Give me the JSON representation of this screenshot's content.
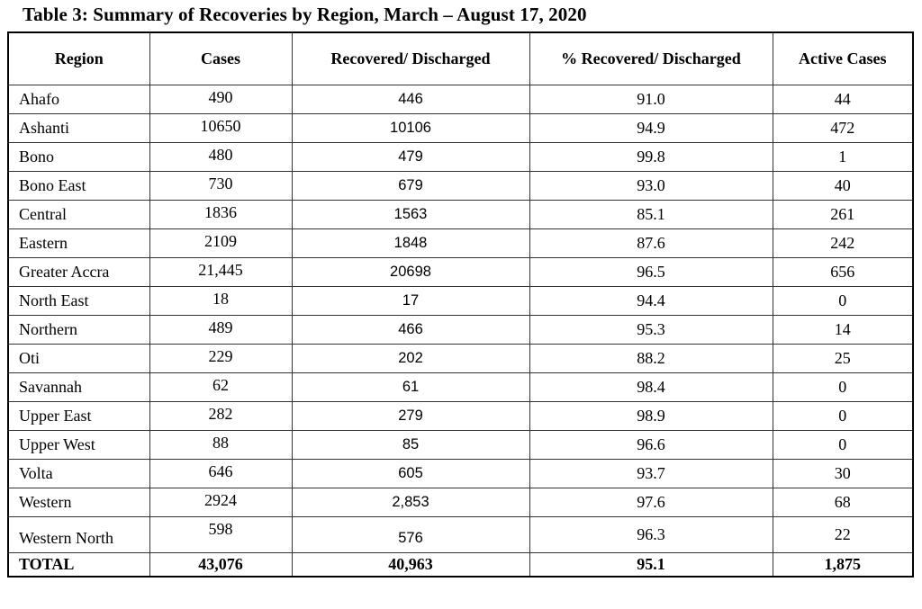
{
  "title": "Table 3: Summary of Recoveries by Region, March – August 17, 2020",
  "colors": {
    "background": "#ffffff",
    "text": "#000000",
    "border": "#000000"
  },
  "table": {
    "columns": [
      "Region",
      "Cases",
      "Recovered/ Discharged",
      "% Recovered/ Discharged",
      "Active Cases"
    ],
    "rows": [
      {
        "region": "Ahafo",
        "cases": "490",
        "recovered": "446",
        "pct": "91.0",
        "active": "44"
      },
      {
        "region": "Ashanti",
        "cases": "10650",
        "recovered": "10106",
        "pct": "94.9",
        "active": "472"
      },
      {
        "region": "Bono",
        "cases": "480",
        "recovered": "479",
        "pct": "99.8",
        "active": "1"
      },
      {
        "region": "Bono East",
        "cases": "730",
        "recovered": "679",
        "pct": "93.0",
        "active": "40"
      },
      {
        "region": "Central",
        "cases": "1836",
        "recovered": "1563",
        "pct": "85.1",
        "active": "261"
      },
      {
        "region": "Eastern",
        "cases": "2109",
        "recovered": "1848",
        "pct": "87.6",
        "active": "242"
      },
      {
        "region": "Greater Accra",
        "cases": "21,445",
        "recovered": "20698",
        "pct": "96.5",
        "active": "656"
      },
      {
        "region": "North East",
        "cases": "18",
        "recovered": "17",
        "pct": "94.4",
        "active": "0"
      },
      {
        "region": "Northern",
        "cases": "489",
        "recovered": "466",
        "pct": "95.3",
        "active": "14"
      },
      {
        "region": "Oti",
        "cases": "229",
        "recovered": "202",
        "pct": "88.2",
        "active": "25"
      },
      {
        "region": "Savannah",
        "cases": "62",
        "recovered": "61",
        "pct": "98.4",
        "active": "0"
      },
      {
        "region": "Upper East",
        "cases": "282",
        "recovered": "279",
        "pct": "98.9",
        "active": "0"
      },
      {
        "region": "Upper West",
        "cases": "88",
        "recovered": "85",
        "pct": "96.6",
        "active": "0"
      },
      {
        "region": "Volta",
        "cases": "646",
        "recovered": "605",
        "pct": "93.7",
        "active": "30"
      },
      {
        "region": "Western",
        "cases": "2924",
        "recovered": "2,853",
        "pct": "97.6",
        "active": "68"
      },
      {
        "region": "Western North",
        "cases": "598",
        "recovered": "576",
        "pct": "96.3",
        "active": "22"
      }
    ],
    "total": {
      "region": "TOTAL",
      "cases": "43,076",
      "recovered": "40,963",
      "pct": "95.1",
      "active": "1,875"
    }
  }
}
